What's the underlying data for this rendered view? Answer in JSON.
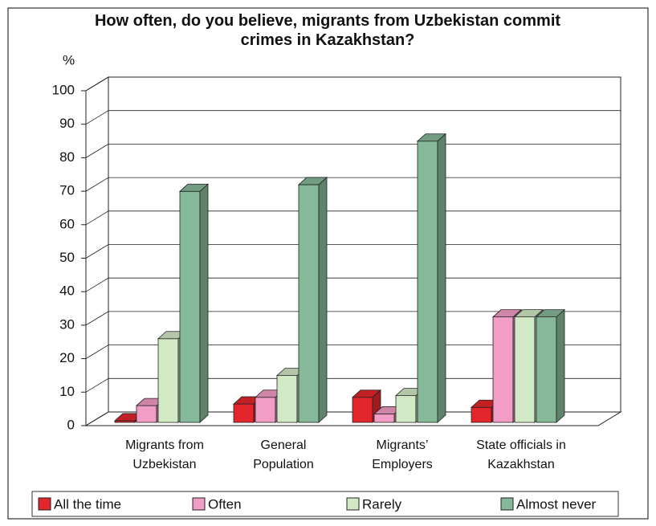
{
  "chart_data": {
    "type": "bar3d",
    "title": "How often, do you believe, migrants from Uzbekistan commit crimes in Kazakhstan?",
    "y_label": "%",
    "categories": [
      "Migrants from Uzbekistan",
      "General Population",
      "Migrants’ Employers",
      "State officials in Kazakhstan"
    ],
    "series": [
      {
        "name": "All the time",
        "color": "#e3262c",
        "values": [
          0.5,
          5.5,
          7.5,
          4.5
        ]
      },
      {
        "name": "Often",
        "color": "#f29dc6",
        "values": [
          5,
          7.5,
          2.5,
          31.5
        ]
      },
      {
        "name": "Rarely",
        "color": "#d2e9c6",
        "values": [
          25,
          14,
          8,
          31.5
        ]
      },
      {
        "name": "Almost never",
        "color": "#86b99a",
        "values": [
          69,
          71,
          84,
          31.5
        ]
      }
    ],
    "ylim": [
      0,
      100
    ],
    "yticks": [
      0,
      10,
      20,
      30,
      40,
      50,
      60,
      70,
      80,
      90,
      100
    ],
    "grid": true
  }
}
